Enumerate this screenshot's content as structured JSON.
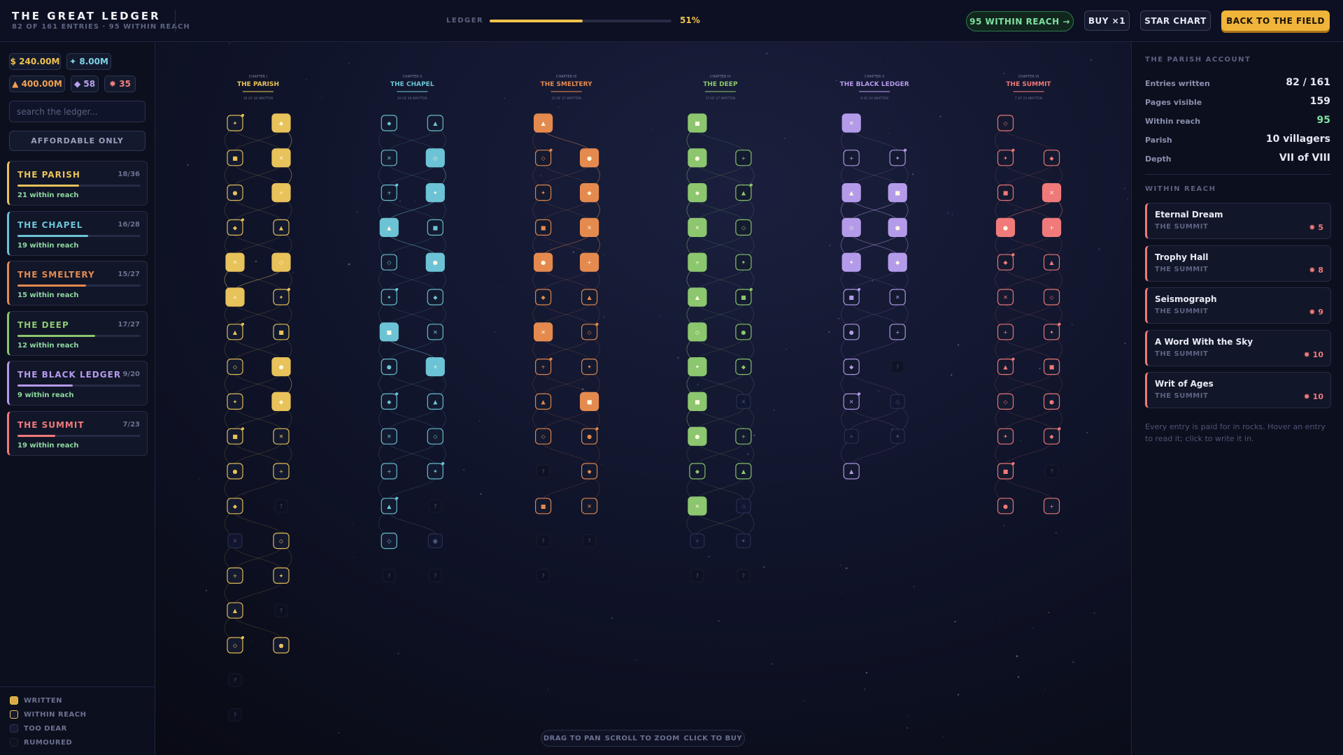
{
  "header": {
    "title": "THE GREAT LEDGER",
    "subtitle": "82 OF 161 ENTRIES · 95 WITHIN REACH"
  },
  "ledger": {
    "label": "LEDGER",
    "value": 51,
    "value_label": "51%"
  },
  "actions": [
    "95 WITHIN REACH →",
    "BUY ×1",
    "STAR CHART",
    "BACK TO THE FIELD"
  ],
  "resources": [
    "$ 240.00M",
    "✦ 8.00M",
    "▲ 400.00M",
    "◆ 58",
    "✸ 35"
  ],
  "search_placeholder": "search the ledger...",
  "filter": "AFFORDABLE ONLY",
  "chapters": [
    {
      "name": "THE PARISH",
      "count_label": "18/36",
      "written": 18,
      "total": 36,
      "reach_label": "21 within reach",
      "numeral": "CHAPTER I",
      "caption": "18 OF 36 WRITTEN"
    },
    {
      "name": "THE CHAPEL",
      "count_label": "16/28",
      "written": 16,
      "total": 28,
      "reach_label": "19 within reach",
      "numeral": "CHAPTER II",
      "caption": "16 OF 28 WRITTEN"
    },
    {
      "name": "THE SMELTERY",
      "count_label": "15/27",
      "written": 15,
      "total": 27,
      "reach_label": "15 within reach",
      "numeral": "CHAPTER III",
      "caption": "15 OF 27 WRITTEN"
    },
    {
      "name": "THE DEEP",
      "count_label": "17/27",
      "written": 17,
      "total": 27,
      "reach_label": "12 within reach",
      "numeral": "CHAPTER IV",
      "caption": "17 OF 27 WRITTEN"
    },
    {
      "name": "THE BLACK LEDGER",
      "count_label": "9/20",
      "written": 9,
      "total": 20,
      "reach_label": "9 within reach",
      "numeral": "CHAPTER V",
      "caption": "9 OF 20 WRITTEN"
    },
    {
      "name": "THE SUMMIT",
      "count_label": "7/23",
      "written": 7,
      "total": 23,
      "reach_label": "19 within reach",
      "numeral": "CHAPTER VI",
      "caption": "7 OF 23 WRITTEN"
    }
  ],
  "legend": [
    "WRITTEN",
    "WITHIN REACH",
    "TOO DEAR",
    "RUMOURED"
  ],
  "account": {
    "title": "THE PARISH ACCOUNT",
    "stats": [
      {
        "label": "Entries written",
        "value": "82 / 161"
      },
      {
        "label": "Pages visible",
        "value": "159"
      },
      {
        "label": "Within reach",
        "value": "95"
      },
      {
        "label": "Parish",
        "value": "10 villagers"
      },
      {
        "label": "Depth",
        "value": "VII of VIII"
      }
    ]
  },
  "reach": {
    "title": "WITHIN REACH",
    "items": [
      {
        "name": "Eternal Dream",
        "chapter": "THE SUMMIT",
        "cost": "✸ 5"
      },
      {
        "name": "Trophy Hall",
        "chapter": "THE SUMMIT",
        "cost": "✸ 8"
      },
      {
        "name": "Seismograph",
        "chapter": "THE SUMMIT",
        "cost": "✸ 9"
      },
      {
        "name": "A Word With the Sky",
        "chapter": "THE SUMMIT",
        "cost": "✸ 10"
      },
      {
        "name": "Writ of Ages",
        "chapter": "THE SUMMIT",
        "cost": "✸ 10"
      }
    ]
  },
  "note": "Every entry is paid for in rocks. Hover an entry to read it; click to write it in.",
  "hints": [
    "DRAG TO PAN",
    "SCROLL TO ZOOM",
    "CLICK TO BUY"
  ]
}
